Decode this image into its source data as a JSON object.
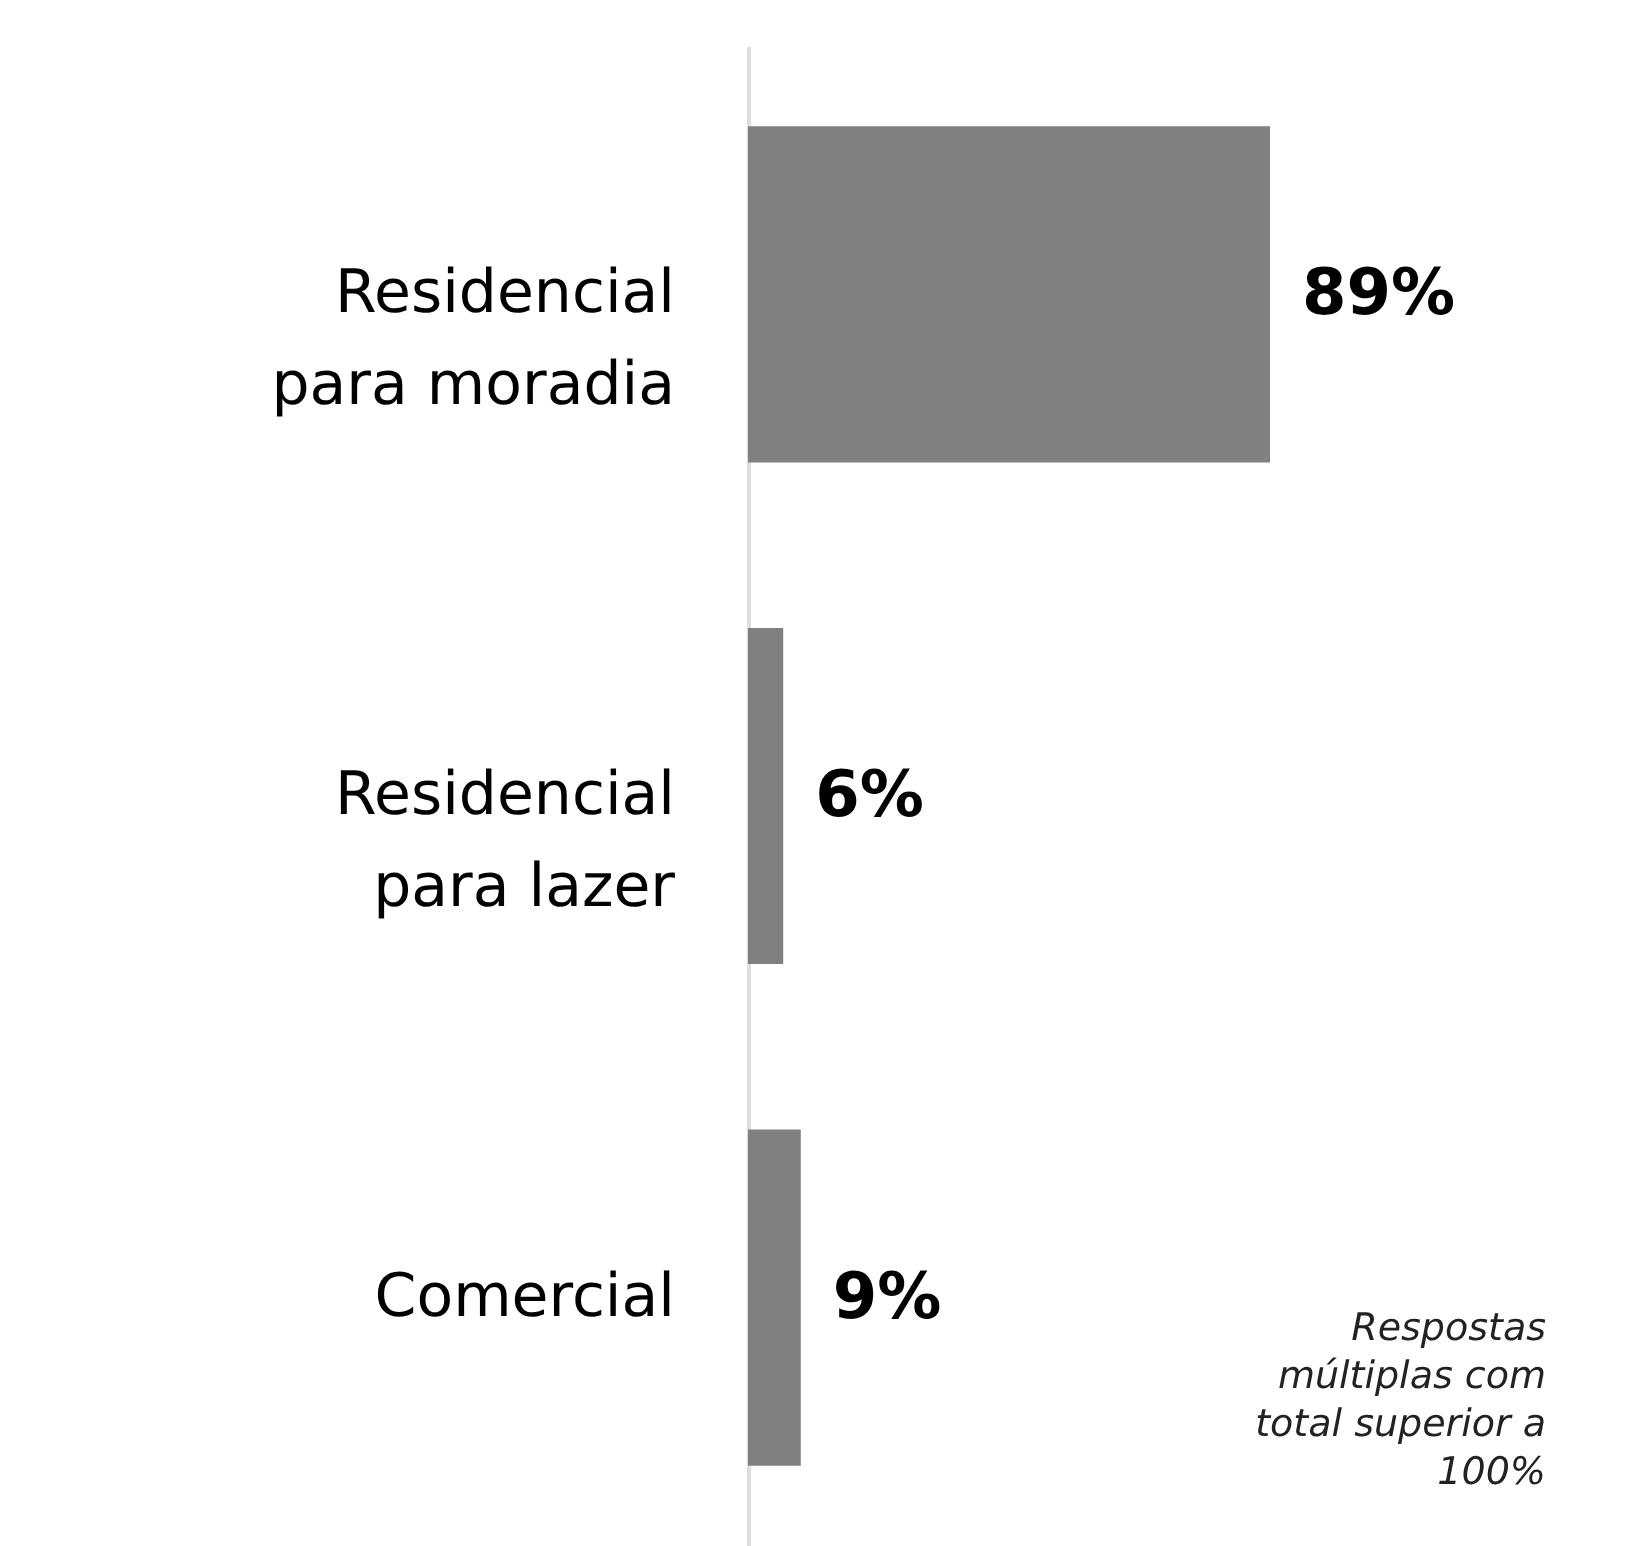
{
  "chart_data": {
    "type": "bar",
    "orientation": "horizontal",
    "categories": [
      "Residencial para moradia",
      "Residencial para lazer",
      "Comercial"
    ],
    "values": [
      89,
      6,
      9
    ],
    "color": "#808080",
    "data_labels": true,
    "value_labels": [
      "89%",
      "6%",
      "9%"
    ],
    "annotations": [
      "Respostas múltiplas com total superior a 100%"
    ]
  }
}
